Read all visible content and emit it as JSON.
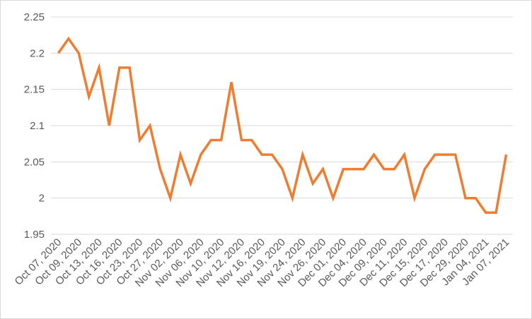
{
  "chart_data": {
    "type": "line",
    "title": "",
    "xlabel": "",
    "ylabel": "",
    "ylim": [
      1.95,
      2.25
    ],
    "y_ticks": [
      1.95,
      2,
      2.05,
      2.1,
      2.15,
      2.2,
      2.25
    ],
    "y_tick_labels": [
      "1.95",
      "2",
      "2.05",
      "2.1",
      "2.15",
      "2.2",
      "2.25"
    ],
    "x_tick_labels": [
      "Oct 07, 2020",
      "Oct 09, 2020",
      "Oct 13, 2020",
      "Oct 16, 2020",
      "Oct 23, 2020",
      "Oct 27, 2020",
      "Nov 02, 2020",
      "Nov 06, 2020",
      "Nov 10, 2020",
      "Nov 12, 2020",
      "Nov 16, 2020",
      "Nov 19, 2020",
      "Nov 24, 2020",
      "Nov 26, 2020",
      "Dec 01, 2020",
      "Dec 04, 2020",
      "Dec 09, 2020",
      "Dec 11, 2020",
      "Dec 15, 2020",
      "Dec 17, 2020",
      "Dec 29, 2020",
      "Jan 04, 2021",
      "Jan 07, 2021"
    ],
    "label_every": 2,
    "grid": true,
    "legend": "none",
    "series": [
      {
        "color": "#ED7D31",
        "values": [
          2.2,
          2.22,
          2.2,
          2.14,
          2.18,
          2.1,
          2.18,
          2.18,
          2.08,
          2.1,
          2.04,
          2.0,
          2.06,
          2.02,
          2.06,
          2.08,
          2.08,
          2.16,
          2.08,
          2.08,
          2.06,
          2.06,
          2.04,
          2.0,
          2.06,
          2.02,
          2.04,
          2.0,
          2.04,
          2.04,
          2.04,
          2.06,
          2.04,
          2.04,
          2.06,
          2.0,
          2.04,
          2.06,
          2.06,
          2.06,
          2.0,
          2.0,
          1.98,
          1.98,
          2.06
        ]
      }
    ]
  }
}
